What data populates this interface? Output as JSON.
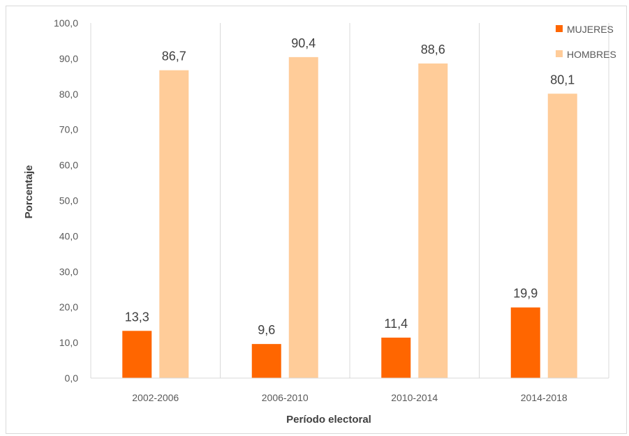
{
  "chart_data": {
    "type": "bar",
    "title": "",
    "xlabel": "Período electoral",
    "ylabel": "Porcentaje",
    "categories": [
      "2002-2006",
      "2006-2010",
      "2010-2014",
      "2014-2018"
    ],
    "series": [
      {
        "name": "MUJERES",
        "color": "#ff6600",
        "values": [
          13.3,
          9.6,
          11.4,
          19.9
        ],
        "labels": [
          "13,3",
          "9,6",
          "11,4",
          "19,9"
        ]
      },
      {
        "name": "HOMBRES",
        "color": "#ffcc99",
        "values": [
          86.7,
          90.4,
          88.6,
          80.1
        ],
        "labels": [
          "86,7",
          "90,4",
          "88,6",
          "80,1"
        ]
      }
    ],
    "ylim": [
      0,
      100
    ],
    "yticks": [
      "0,0",
      "10,0",
      "20,0",
      "30,0",
      "40,0",
      "50,0",
      "60,0",
      "70,0",
      "80,0",
      "90,0",
      "100,0"
    ],
    "legend_position": "top-right",
    "grid": "vertical category separators"
  }
}
